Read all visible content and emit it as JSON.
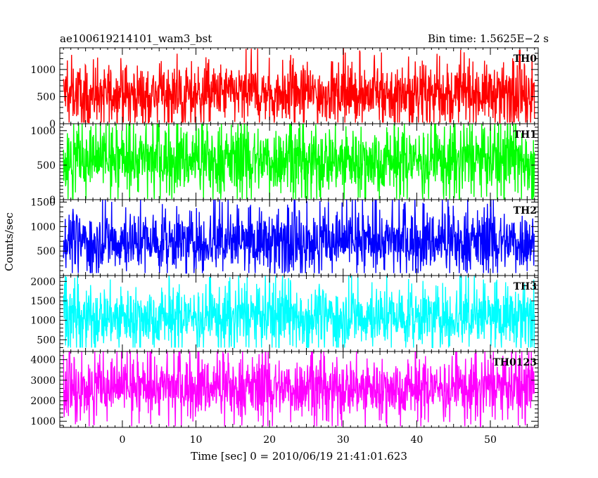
{
  "chart_data": {
    "type": "line",
    "title": "ae100619214101_wam3_bst",
    "subtitle": "Bin time: 1.5625E−2 s",
    "xlabel": "Time [sec] 0 = 2010/06/19 21:41:01.623",
    "ylabel": "Counts/sec",
    "xlim": [
      -8.5,
      56.5
    ],
    "x_data_range": [
      -8,
      56
    ],
    "x_ticks": [
      0,
      10,
      20,
      30,
      40,
      50
    ],
    "grid": false,
    "panels": [
      {
        "name": "TH0",
        "color": "#ff0000",
        "ylim": [
          0,
          1400
        ],
        "y_ticks": [
          0,
          500,
          1000
        ],
        "mean": 560,
        "spread": 260,
        "low_clip": 20,
        "high_clip": 1400
      },
      {
        "name": "TH1",
        "color": "#00ff00",
        "ylim": [
          0,
          1100
        ],
        "y_ticks": [
          0,
          500,
          1000
        ],
        "mean": 580,
        "spread": 240,
        "low_clip": 10,
        "high_clip": 1100
      },
      {
        "name": "TH2",
        "color": "#0000ff",
        "ylim": [
          0,
          1550
        ],
        "y_ticks": [
          500,
          1000,
          1500
        ],
        "mean": 700,
        "spread": 300,
        "low_clip": 50,
        "high_clip": 1550
      },
      {
        "name": "TH3",
        "color": "#00ffff",
        "ylim": [
          200,
          2150
        ],
        "y_ticks": [
          500,
          1000,
          1500,
          2000
        ],
        "mean": 1100,
        "spread": 380,
        "low_clip": 300,
        "high_clip": 2150
      },
      {
        "name": "TH0123",
        "color": "#ff00ff",
        "ylim": [
          700,
          4400
        ],
        "y_ticks": [
          1000,
          2000,
          3000,
          4000
        ],
        "mean": 2650,
        "spread": 700,
        "low_clip": 750,
        "high_clip": 4400
      }
    ]
  }
}
